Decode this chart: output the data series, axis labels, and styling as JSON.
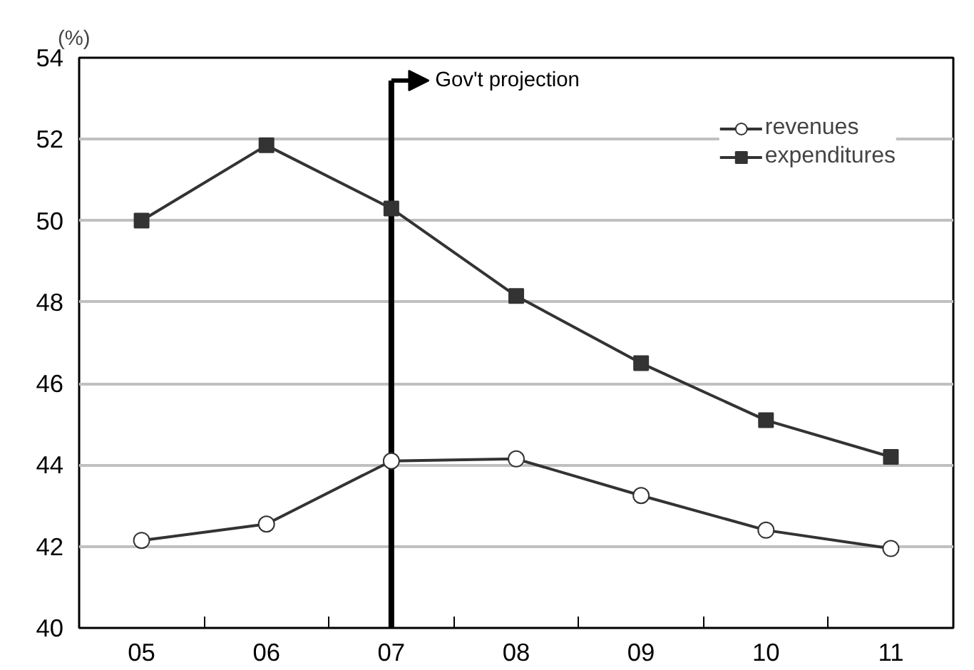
{
  "chart_data": {
    "type": "line",
    "ylabel": "(%)",
    "categories": [
      "05",
      "06",
      "07",
      "08",
      "09",
      "10",
      "11"
    ],
    "series": [
      {
        "name": "revenues",
        "color": "#333333",
        "marker": "circle",
        "values": [
          42.15,
          42.55,
          44.1,
          44.15,
          43.25,
          42.4,
          41.95
        ]
      },
      {
        "name": "expenditures",
        "color": "#333333",
        "marker": "square",
        "values": [
          50.0,
          51.85,
          50.3,
          48.15,
          46.5,
          45.1,
          44.2
        ]
      }
    ],
    "ylim": [
      40,
      54
    ],
    "yticks": [
      40,
      42,
      44,
      46,
      48,
      50,
      52,
      54
    ],
    "grid": "y",
    "legend": "top right",
    "ref_lines": [
      {
        "axis": "x",
        "value": "07",
        "label": "Gov't projection",
        "color": "#000000"
      }
    ]
  }
}
